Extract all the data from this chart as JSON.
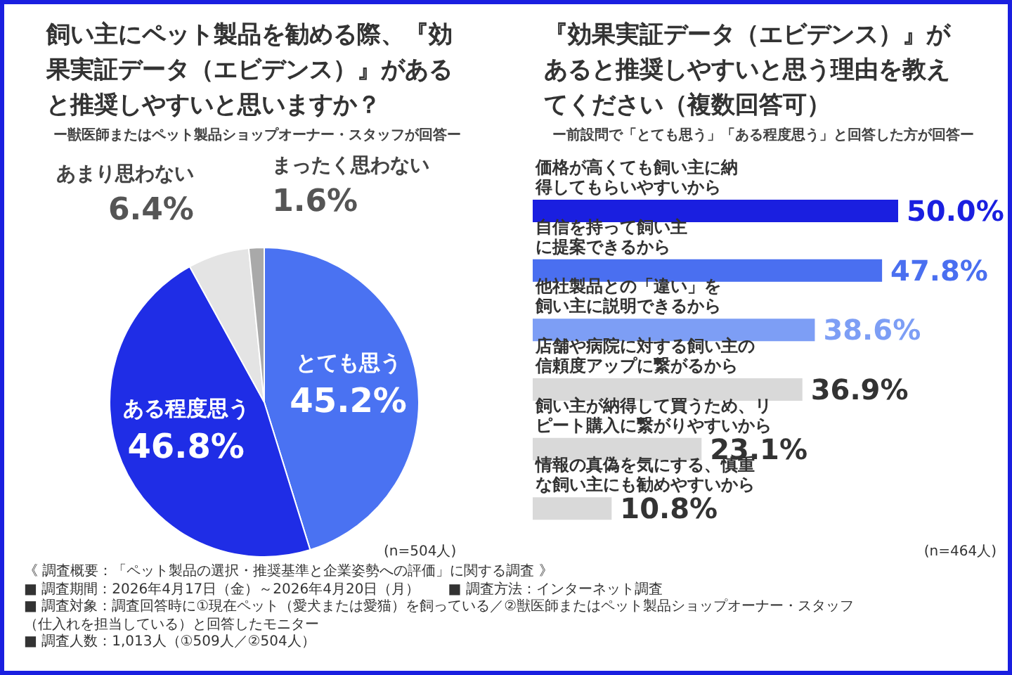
{
  "chart_data": [
    {
      "type": "pie",
      "title": "飼い主にペット製品を勧める際、『効果実証データ（エビデンス）』があると推奨しやすいと思いますか？",
      "subtitle": "ー獣医師またはペット製品ショップオーナー・スタッフが回答ー",
      "categories": [
        "とても思う",
        "ある程度思う",
        "あまり思わない",
        "まったく思わない"
      ],
      "values": [
        45.2,
        46.8,
        6.4,
        1.6
      ],
      "value_labels": [
        "45.2%",
        "46.8%",
        "6.4%",
        "1.6%"
      ],
      "colors": [
        "#4a72f2",
        "#1f2de6",
        "#e4e4e4",
        "#a9a9a9"
      ],
      "annotations": [
        "(n=504人)",
        "《 調査概要：「ペット製品の選択・推奨基準と企業姿勢への評価」に関する調査 》",
        "■ 調査期間：2026年4月17日（金）～2026年4月20日（月）　　■ 調査方法：インターネット調査",
        "■ 調査対象：調査回答時に①現在ペット（愛犬または愛猫）を飼っている／②獣医師またはペット製品ショップオーナー・スタッフ（仕入れを担当している）と回答したモニター",
        "■ 調査人数：1,013人（①509人／②504人）"
      ]
    },
    {
      "type": "bar",
      "orientation": "horizontal",
      "title": "『効果実証データ（エビデンス）』があると推奨しやすいと思う理由を教えてください（複数回答可）",
      "subtitle": "ー前設問で「とても思う」「ある程度思う」と回答した方が回答ー",
      "categories": [
        "価格が高くても飼い主に納得してもらいやすいから",
        "自信を持って飼い主に提案できるから",
        "他社製品との「違い」を飼い主に説明できるから",
        "店舗や病院に対する飼い主の信頼度アップに繋がるから",
        "飼い主が納得して買うため、リピート購入に繋がりやすいから",
        "情報の真偽を気にする、慎重な飼い主にも勧めやすいから"
      ],
      "values": [
        50.0,
        47.8,
        38.6,
        36.9,
        23.1,
        10.8
      ],
      "value_labels": [
        "50.0%",
        "47.8%",
        "38.6%",
        "36.9%",
        "23.1%",
        "10.8%"
      ],
      "colors": [
        "#1a1fe0",
        "#4a6ff0",
        "#7d9ef5",
        "#d9d9d9",
        "#d9d9d9",
        "#d9d9d9"
      ],
      "annotations": [
        "(n=464人)"
      ]
    }
  ]
}
